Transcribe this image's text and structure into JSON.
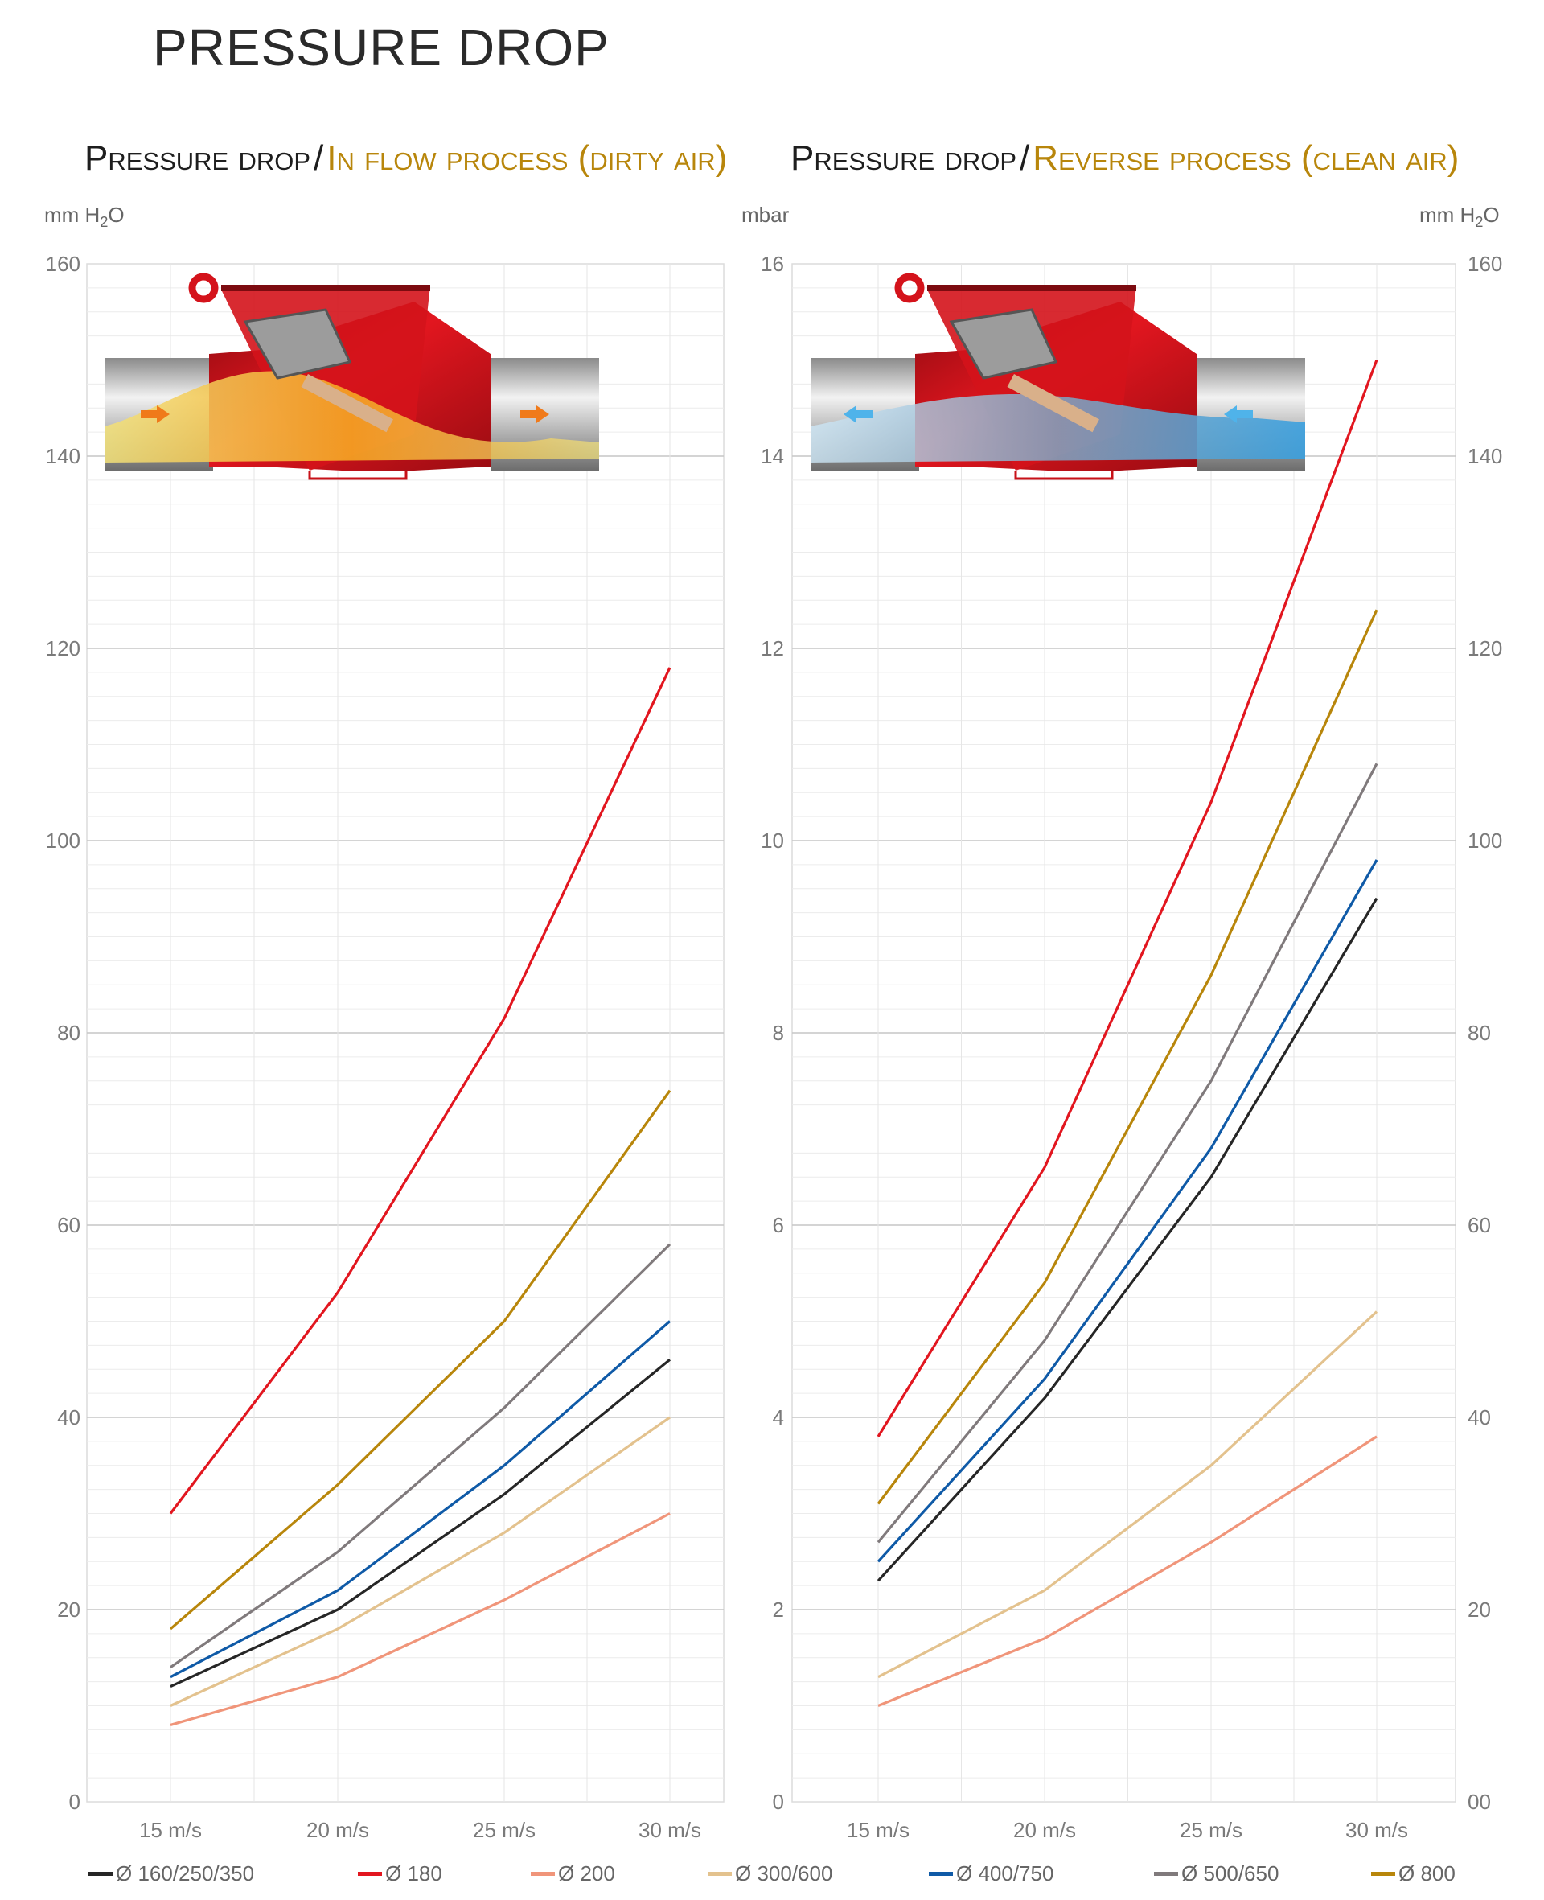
{
  "page_title": "PRESSURE DROP",
  "panels": [
    {
      "title_dark": "Pressure drop",
      "separator": "/",
      "title_gold": "In flow process (dirty air)"
    },
    {
      "title_dark": "Pressure drop",
      "separator": "/",
      "title_gold": "Reverse process (clean air)"
    }
  ],
  "units": {
    "left": "mm H2O",
    "middle": "mbar",
    "right": "mm H2O"
  },
  "legend": [
    {
      "label": "Ø 160/250/350",
      "color": "#262626"
    },
    {
      "label": "Ø 180",
      "color": "#e2161f"
    },
    {
      "label": "Ø 200",
      "color": "#f0957a"
    },
    {
      "label": "Ø 300/600",
      "color": "#e3c28e"
    },
    {
      "label": "Ø 400/750",
      "color": "#0f5aa7"
    },
    {
      "label": "Ø 500/650",
      "color": "#807a7c"
    },
    {
      "label": "Ø 800",
      "color": "#b8860b"
    }
  ],
  "chart_data": [
    {
      "type": "line",
      "title": "Pressure drop / In flow process (dirty air)",
      "xlabel": "",
      "ylabel": "mm H2O",
      "categories": [
        "15 m/s",
        "20 m/s",
        "25 m/s",
        "30 m/s"
      ],
      "ylim": [
        0,
        160
      ],
      "y_ticks": [
        "0",
        "20",
        "40",
        "60",
        "80",
        "100",
        "120",
        "140",
        "160"
      ],
      "grid": true,
      "series": [
        {
          "name": "Ø 160/250/350",
          "color": "#262626",
          "values": [
            12,
            20,
            32,
            46
          ]
        },
        {
          "name": "Ø 180",
          "color": "#e2161f",
          "values": [
            30,
            53,
            81.5,
            118
          ]
        },
        {
          "name": "Ø 200",
          "color": "#f0957a",
          "values": [
            8,
            13,
            21,
            30
          ]
        },
        {
          "name": "Ø 300/600",
          "color": "#e3c28e",
          "values": [
            10,
            18,
            28,
            40
          ]
        },
        {
          "name": "Ø 400/750",
          "color": "#0f5aa7",
          "values": [
            13,
            22,
            35,
            50
          ]
        },
        {
          "name": "Ø 500/650",
          "color": "#807a7c",
          "values": [
            14,
            26,
            41,
            58
          ]
        },
        {
          "name": "Ø 800",
          "color": "#b8860b",
          "values": [
            18,
            33,
            50,
            74
          ]
        }
      ]
    },
    {
      "type": "line",
      "title": "Pressure drop / Reverse process (clean air)",
      "xlabel": "",
      "ylabel": "mbar",
      "ylabel_right": "mm H2O",
      "categories": [
        "15 m/s",
        "20 m/s",
        "25 m/s",
        "30 m/s"
      ],
      "ylim": [
        0,
        16
      ],
      "y_ticks": [
        "0",
        "2",
        "4",
        "6",
        "8",
        "10",
        "12",
        "14",
        "16"
      ],
      "y_ticks_right": [
        "00",
        "20",
        "40",
        "60",
        "80",
        "100",
        "120",
        "140",
        "160"
      ],
      "grid": true,
      "series": [
        {
          "name": "Ø 160/250/350",
          "color": "#262626",
          "values": [
            2.3,
            4.2,
            6.5,
            9.4
          ]
        },
        {
          "name": "Ø 180",
          "color": "#e2161f",
          "values": [
            3.8,
            6.6,
            10.4,
            15
          ]
        },
        {
          "name": "Ø 200",
          "color": "#f0957a",
          "values": [
            1,
            1.7,
            2.7,
            3.8
          ]
        },
        {
          "name": "Ø 300/600",
          "color": "#e3c28e",
          "values": [
            1.3,
            2.2,
            3.5,
            5.1
          ]
        },
        {
          "name": "Ø 400/750",
          "color": "#0f5aa7",
          "values": [
            2.5,
            4.4,
            6.8,
            9.8
          ]
        },
        {
          "name": "Ø 500/650",
          "color": "#807a7c",
          "values": [
            2.7,
            4.8,
            7.5,
            10.8
          ]
        },
        {
          "name": "Ø 800",
          "color": "#b8860b",
          "values": [
            3.1,
            5.4,
            8.6,
            12.4
          ]
        }
      ]
    }
  ]
}
